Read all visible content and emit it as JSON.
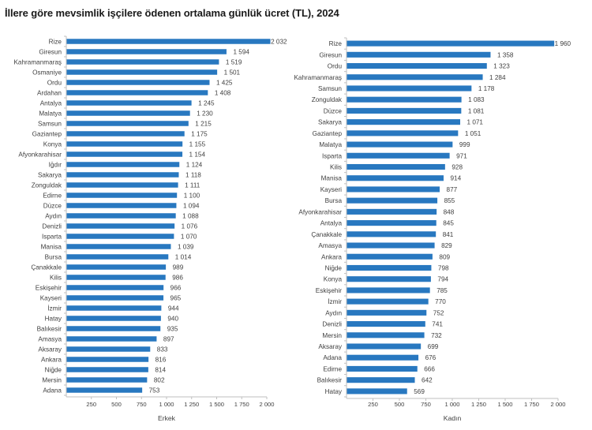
{
  "title": "İllere göre mevsimlik işçilere ödenen ortalama günlük ücret (TL), 2024",
  "chart_data": [
    {
      "type": "bar",
      "orientation": "horizontal",
      "title": "İllere göre mevsimlik işçilere ödenen ortalama günlük ücret (TL), 2024",
      "xlabel": "Erkek",
      "ylabel": "",
      "xlim": [
        0,
        2000
      ],
      "xticks": [
        250,
        500,
        750,
        1000,
        1250,
        1500,
        1750,
        2000
      ],
      "xtick_labels": [
        "250",
        "500",
        "750",
        "1 000",
        "1 250",
        "1 500",
        "1 750",
        "2 000"
      ],
      "grid": false,
      "color": "#2878c0",
      "categories": [
        "Rize",
        "Giresun",
        "Kahramanmaraş",
        "Osmaniye",
        "Ordu",
        "Ardahan",
        "Antalya",
        "Malatya",
        "Samsun",
        "Gaziantep",
        "Konya",
        "Afyonkarahisar",
        "Iğdır",
        "Sakarya",
        "Zonguldak",
        "Edirne",
        "Düzce",
        "Aydın",
        "Denizli",
        "Isparta",
        "Manisa",
        "Bursa",
        "Çanakkale",
        "Kilis",
        "Eskişehir",
        "Kayseri",
        "İzmir",
        "Hatay",
        "Balıkesir",
        "Amasya",
        "Aksaray",
        "Ankara",
        "Niğde",
        "Mersin",
        "Adana"
      ],
      "values": [
        2032,
        1594,
        1519,
        1501,
        1425,
        1408,
        1245,
        1230,
        1215,
        1175,
        1155,
        1154,
        1124,
        1118,
        1111,
        1100,
        1094,
        1088,
        1076,
        1070,
        1039,
        1014,
        989,
        986,
        966,
        965,
        944,
        940,
        935,
        897,
        833,
        816,
        814,
        802,
        753
      ],
      "value_labels": [
        "2 032",
        "1 594",
        "1 519",
        "1 501",
        "1 425",
        "1 408",
        "1 245",
        "1 230",
        "1 215",
        "1 175",
        "1 155",
        "1 154",
        "1 124",
        "1 118",
        "1 111",
        "1 100",
        "1 094",
        "1 088",
        "1 076",
        "1 070",
        "1 039",
        "1 014",
        "989",
        "986",
        "966",
        "965",
        "944",
        "940",
        "935",
        "897",
        "833",
        "816",
        "814",
        "802",
        "753"
      ]
    },
    {
      "type": "bar",
      "orientation": "horizontal",
      "title": "",
      "xlabel": "Kadın",
      "ylabel": "",
      "xlim": [
        0,
        2000
      ],
      "xticks": [
        250,
        500,
        750,
        1000,
        1250,
        1500,
        1750,
        2000
      ],
      "xtick_labels": [
        "250",
        "500",
        "750",
        "1 000",
        "1 250",
        "1 500",
        "1 750",
        "2 000"
      ],
      "grid": false,
      "color": "#2878c0",
      "categories": [
        "Rize",
        "Giresun",
        "Ordu",
        "Kahramanmaraş",
        "Samsun",
        "Zonguldak",
        "Düzce",
        "Sakarya",
        "Gaziantep",
        "Malatya",
        "Isparta",
        "Kilis",
        "Manisa",
        "Kayseri",
        "Bursa",
        "Afyonkarahisar",
        "Antalya",
        "Çanakkale",
        "Amasya",
        "Ankara",
        "Niğde",
        "Konya",
        "Eskişehir",
        "İzmir",
        "Aydın",
        "Denizli",
        "Mersin",
        "Aksaray",
        "Adana",
        "Edirne",
        "Balıkesir",
        "Hatay"
      ],
      "values": [
        1960,
        1358,
        1323,
        1284,
        1178,
        1083,
        1081,
        1071,
        1051,
        999,
        971,
        928,
        914,
        877,
        855,
        848,
        845,
        841,
        829,
        809,
        798,
        794,
        785,
        770,
        752,
        741,
        732,
        699,
        676,
        666,
        642,
        569
      ],
      "value_labels": [
        "1 960",
        "1 358",
        "1 323",
        "1 284",
        "1 178",
        "1 083",
        "1 081",
        "1 071",
        "1 051",
        "999",
        "971",
        "928",
        "914",
        "877",
        "855",
        "848",
        "845",
        "841",
        "829",
        "809",
        "798",
        "794",
        "785",
        "770",
        "752",
        "741",
        "732",
        "699",
        "676",
        "666",
        "642",
        "569"
      ]
    }
  ]
}
